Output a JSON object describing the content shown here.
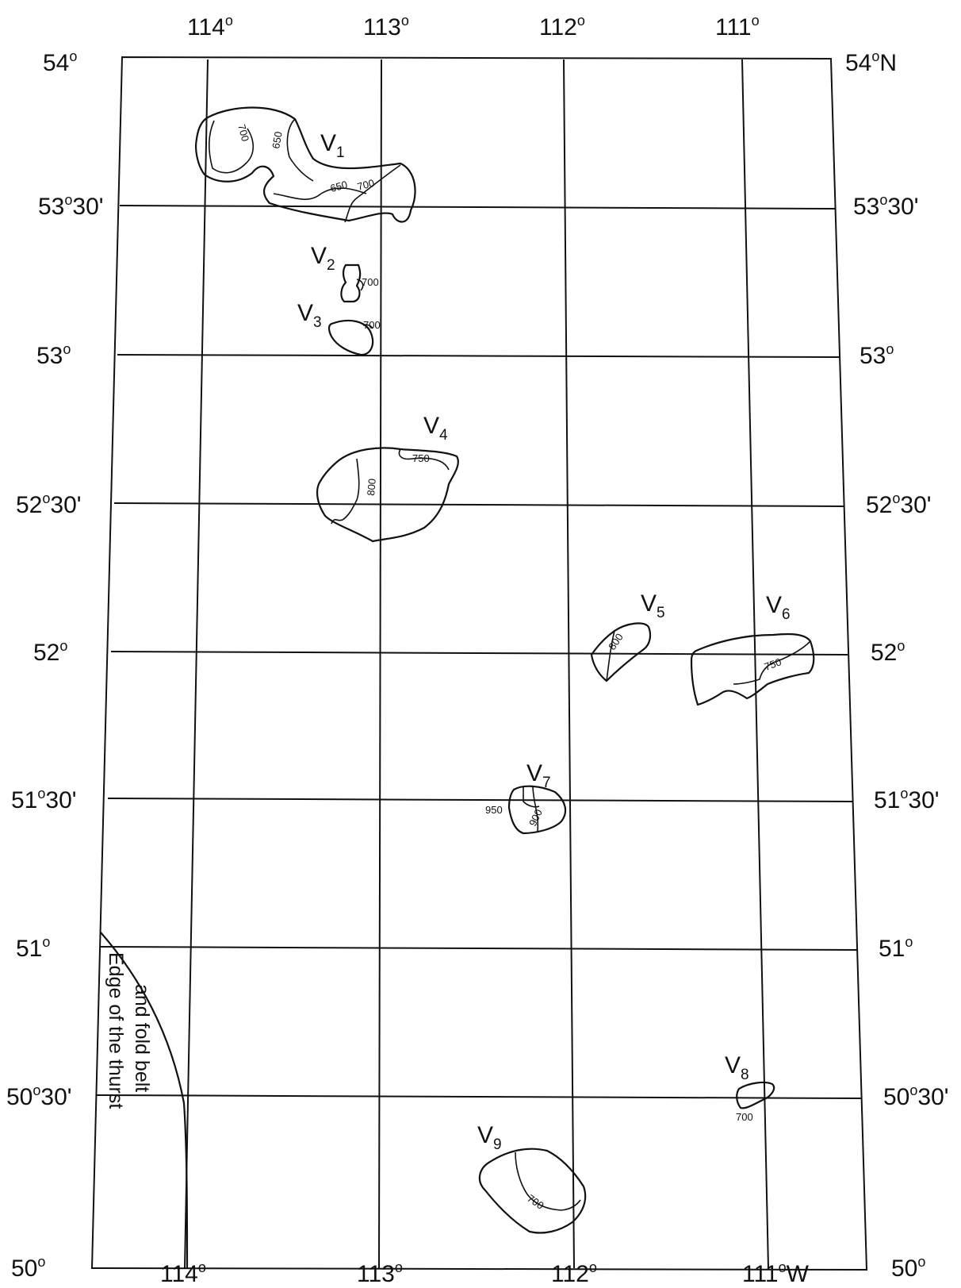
{
  "map": {
    "top_longitudes": [
      {
        "deg": "114",
        "sym": "o",
        "suffix": ""
      },
      {
        "deg": "113",
        "sym": "o",
        "suffix": ""
      },
      {
        "deg": "112",
        "sym": "o",
        "suffix": ""
      },
      {
        "deg": "111",
        "sym": "o",
        "suffix": ""
      }
    ],
    "bottom_longitudes": [
      {
        "deg": "114",
        "sym": "o",
        "suffix": ""
      },
      {
        "deg": "113",
        "sym": "o",
        "suffix": ""
      },
      {
        "deg": "112",
        "sym": "o",
        "suffix": ""
      },
      {
        "deg": "111",
        "sym": "o",
        "suffix": "W"
      }
    ],
    "left_latitudes": [
      {
        "deg": "54",
        "sym": "o",
        "suffix": ""
      },
      {
        "deg": "53",
        "sym": "o",
        "suffix": "30'"
      },
      {
        "deg": "53",
        "sym": "o",
        "suffix": ""
      },
      {
        "deg": "52",
        "sym": "o",
        "suffix": "30'"
      },
      {
        "deg": "52",
        "sym": "o",
        "suffix": ""
      },
      {
        "deg": "51",
        "sym": "o",
        "suffix": "30'"
      },
      {
        "deg": "51",
        "sym": "o",
        "suffix": ""
      },
      {
        "deg": "50",
        "sym": "o",
        "suffix": "30'"
      },
      {
        "deg": "50",
        "sym": "o",
        "suffix": ""
      }
    ],
    "right_latitudes": [
      {
        "deg": "54",
        "sym": "o",
        "suffix": "N"
      },
      {
        "deg": "53",
        "sym": "o",
        "suffix": "30'"
      },
      {
        "deg": "53",
        "sym": "o",
        "suffix": ""
      },
      {
        "deg": "52",
        "sym": "o",
        "suffix": "30'"
      },
      {
        "deg": "52",
        "sym": "o",
        "suffix": ""
      },
      {
        "deg": "51",
        "sym": "o",
        "suffix": "30'"
      },
      {
        "deg": "51",
        "sym": "o",
        "suffix": ""
      },
      {
        "deg": "50",
        "sym": "o",
        "suffix": "30'"
      },
      {
        "deg": "50",
        "sym": "o",
        "suffix": ""
      }
    ],
    "features": [
      {
        "letter": "V",
        "sub": "1",
        "contours": [
          "700",
          "650",
          "650",
          "700"
        ]
      },
      {
        "letter": "V",
        "sub": "2",
        "contours": [
          "700"
        ]
      },
      {
        "letter": "V",
        "sub": "3",
        "contours": [
          "700"
        ]
      },
      {
        "letter": "V",
        "sub": "4",
        "contours": [
          "750",
          "800"
        ]
      },
      {
        "letter": "V",
        "sub": "5",
        "contours": [
          "800"
        ]
      },
      {
        "letter": "V",
        "sub": "6",
        "contours": [
          "750"
        ]
      },
      {
        "letter": "V",
        "sub": "7",
        "contours": [
          "950",
          "900"
        ]
      },
      {
        "letter": "V",
        "sub": "8",
        "contours": [
          "700"
        ]
      },
      {
        "letter": "V",
        "sub": "9",
        "contours": [
          "700"
        ]
      }
    ],
    "thrust_note": {
      "line1": "Edge of the thurst",
      "line2": "and fold belt"
    }
  }
}
